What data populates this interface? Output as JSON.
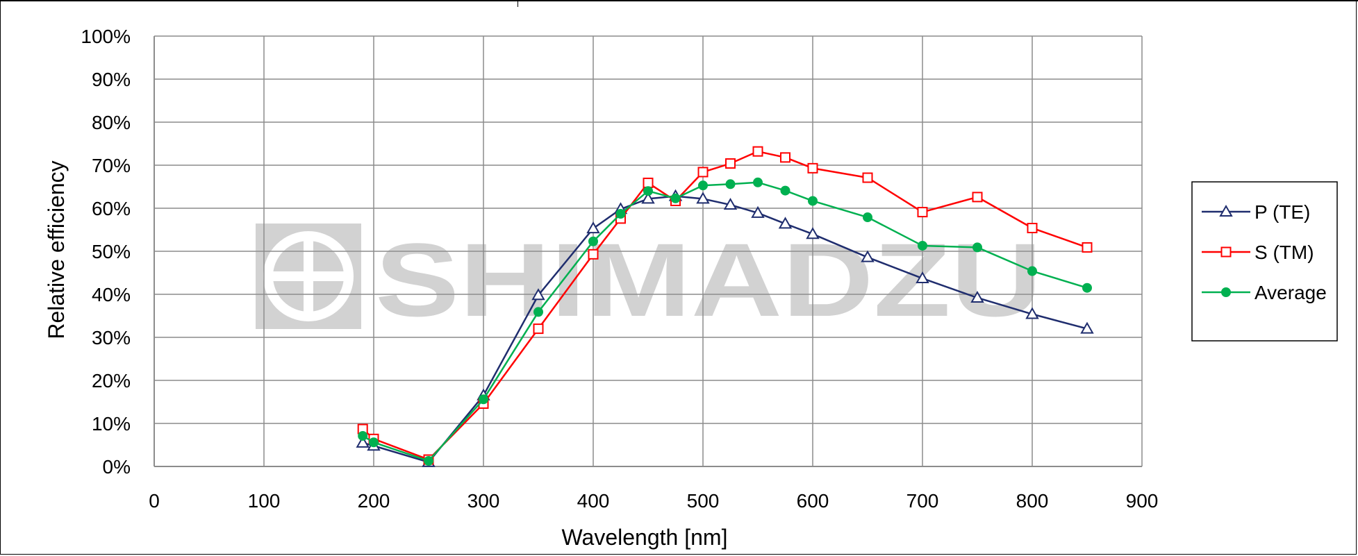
{
  "watermark": {
    "text": "SHIMADZU",
    "color": "#d2d2d2"
  },
  "chart_data": {
    "type": "line",
    "xlabel": "Wavelength [nm]",
    "ylabel": "Relative efficiency",
    "xlim": [
      0,
      900
    ],
    "ylim": [
      0,
      100
    ],
    "x_ticks": [
      0,
      100,
      200,
      300,
      400,
      500,
      600,
      700,
      800,
      900
    ],
    "x_tick_labels": [
      "0",
      "100",
      "200",
      "300",
      "400",
      "500",
      "600",
      "700",
      "800",
      "900"
    ],
    "y_ticks": [
      0,
      10,
      20,
      30,
      40,
      50,
      60,
      70,
      80,
      90,
      100
    ],
    "y_tick_labels": [
      "0%",
      "10%",
      "20%",
      "30%",
      "40%",
      "50%",
      "60%",
      "70%",
      "80%",
      "90%",
      "100%"
    ],
    "grid": true,
    "legend_position": "right",
    "series": [
      {
        "name": "P (TE)",
        "color": "#1f2d6e",
        "marker": "triangle-open",
        "x": [
          190,
          200,
          250,
          300,
          350,
          400,
          425,
          450,
          475,
          500,
          525,
          550,
          575,
          600,
          650,
          700,
          750,
          800,
          850
        ],
        "y": [
          5.5,
          4.8,
          1.0,
          16.5,
          39.8,
          55.3,
          59.8,
          62.2,
          62.8,
          62.2,
          60.8,
          58.9,
          56.4,
          54.0,
          48.6,
          43.7,
          39.2,
          35.4,
          32.0
        ]
      },
      {
        "name": "S (TM)",
        "color": "#ff0000",
        "marker": "square-open",
        "x": [
          190,
          200,
          250,
          300,
          350,
          400,
          425,
          450,
          475,
          500,
          525,
          550,
          575,
          600,
          650,
          700,
          750,
          800,
          850
        ],
        "y": [
          8.7,
          6.4,
          1.6,
          14.6,
          32.0,
          49.3,
          57.6,
          65.9,
          61.7,
          68.4,
          70.4,
          73.2,
          71.8,
          69.3,
          67.1,
          59.1,
          62.6,
          55.4,
          50.9
        ]
      },
      {
        "name": "Average",
        "color": "#00b050",
        "marker": "circle-filled",
        "x": [
          190,
          200,
          250,
          300,
          350,
          400,
          425,
          450,
          475,
          500,
          525,
          550,
          575,
          600,
          650,
          700,
          750,
          800,
          850
        ],
        "y": [
          7.1,
          5.6,
          1.3,
          15.6,
          35.9,
          52.3,
          58.7,
          64.0,
          62.3,
          65.3,
          65.6,
          66.0,
          64.1,
          61.7,
          57.9,
          51.3,
          50.9,
          45.4,
          41.5
        ]
      }
    ]
  }
}
